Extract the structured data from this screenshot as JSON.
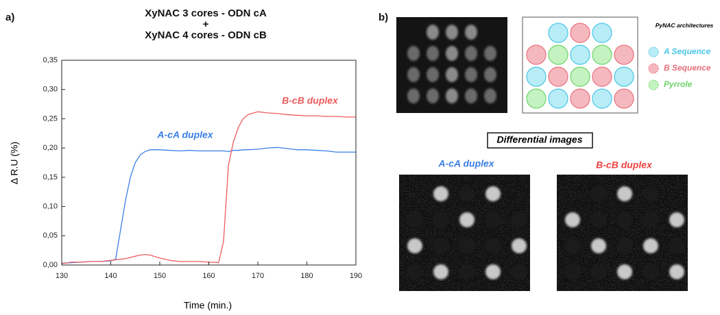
{
  "chart_data": {
    "type": "line",
    "panel_label": "a)",
    "title": [
      "XyNAC 3 cores - ODN cA",
      "+",
      "XyNAC 4 cores - ODN cB"
    ],
    "xlabel": "Time (min.)",
    "ylabel": "Δ R.U (%)",
    "x": [
      130,
      132,
      134,
      136,
      138,
      140,
      141,
      142,
      143,
      144,
      145,
      146,
      147,
      148,
      150,
      152,
      154,
      156,
      158,
      160,
      162,
      163,
      164,
      165,
      166,
      167,
      168,
      170,
      172,
      174,
      176,
      178,
      180,
      182,
      184,
      186,
      188,
      190
    ],
    "series": [
      {
        "name": "A-cA duplex",
        "color": "#3a7fe6",
        "values": [
          0.003,
          0.004,
          0.005,
          0.006,
          0.006,
          0.007,
          0.01,
          0.06,
          0.11,
          0.15,
          0.175,
          0.188,
          0.194,
          0.197,
          0.197,
          0.196,
          0.195,
          0.196,
          0.195,
          0.195,
          0.195,
          0.195,
          0.194,
          0.196,
          0.196,
          0.197,
          0.197,
          0.198,
          0.2,
          0.201,
          0.199,
          0.197,
          0.197,
          0.196,
          0.195,
          0.193,
          0.193,
          0.193
        ]
      },
      {
        "name": "B-cB duplex",
        "color": "#ee5a5e",
        "values": [
          0.002,
          0.005,
          0.005,
          0.006,
          0.006,
          0.008,
          0.009,
          0.01,
          0.011,
          0.013,
          0.015,
          0.017,
          0.018,
          0.017,
          0.012,
          0.008,
          0.006,
          0.006,
          0.006,
          0.005,
          0.004,
          0.04,
          0.17,
          0.21,
          0.235,
          0.25,
          0.257,
          0.262,
          0.26,
          0.259,
          0.257,
          0.256,
          0.255,
          0.255,
          0.254,
          0.254,
          0.253,
          0.253
        ]
      }
    ],
    "xlim": [
      130,
      190
    ],
    "xticks": [
      130,
      140,
      150,
      160,
      170,
      180,
      190
    ],
    "ylim": [
      0,
      0.35
    ],
    "yticks": [
      {
        "value": 0,
        "label": "0,00"
      },
      {
        "value": 0.05,
        "label": "0,05"
      },
      {
        "value": 0.1,
        "label": "0,10"
      },
      {
        "value": 0.15,
        "label": "0,15"
      },
      {
        "value": 0.2,
        "label": "0,20"
      },
      {
        "value": 0.25,
        "label": "0,25"
      },
      {
        "value": 0.3,
        "label": "0,30"
      },
      {
        "value": 0.35,
        "label": "0,35"
      }
    ],
    "grid": false
  },
  "panel_b": {
    "panel_label": "b)",
    "legend_title": "PyNAC architectures",
    "legend": [
      "A Sequence",
      "B Sequence",
      "Pyrrole"
    ],
    "differential_title": "Differential images",
    "image_labels": [
      "A-cA duplex",
      "B-cB duplex"
    ]
  }
}
